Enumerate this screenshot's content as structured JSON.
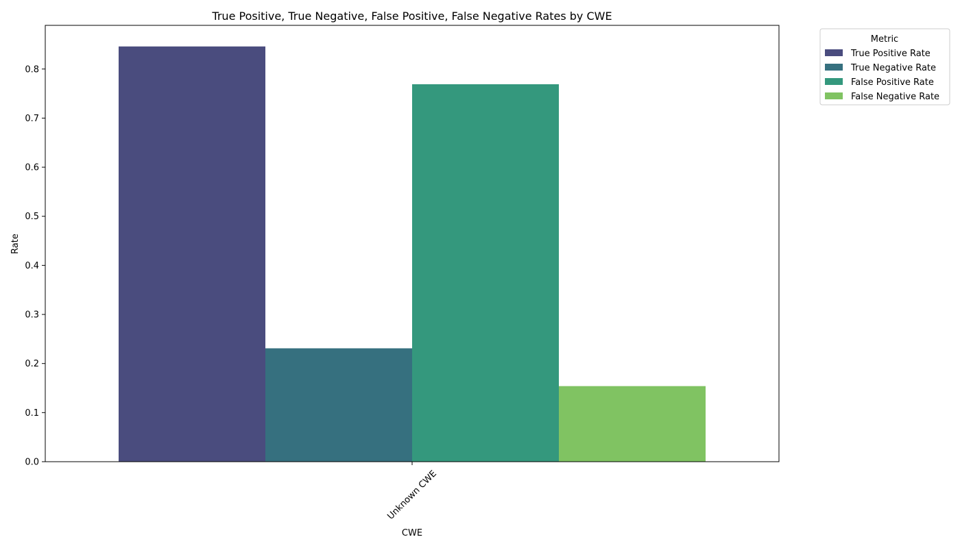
{
  "chart_data": {
    "type": "bar",
    "title": "True Positive, True Negative, False Positive, False Negative Rates by CWE",
    "xlabel": "CWE",
    "ylabel": "Rate",
    "categories": [
      "Unknown CWE"
    ],
    "series": [
      {
        "name": "True Positive Rate",
        "values": [
          0.846
        ],
        "color": "#4a4c7e"
      },
      {
        "name": "True Negative Rate",
        "values": [
          0.231
        ],
        "color": "#36707f"
      },
      {
        "name": "False Positive Rate",
        "values": [
          0.769
        ],
        "color": "#34987d"
      },
      {
        "name": "False Negative Rate",
        "values": [
          0.154
        ],
        "color": "#80c362"
      }
    ],
    "ylim": [
      0,
      0.889
    ],
    "yticks": [
      "0.0",
      "0.1",
      "0.2",
      "0.3",
      "0.4",
      "0.5",
      "0.6",
      "0.7",
      "0.8"
    ],
    "grid": false,
    "legend": {
      "title": "Metric",
      "placement": "outside-top-right"
    }
  }
}
